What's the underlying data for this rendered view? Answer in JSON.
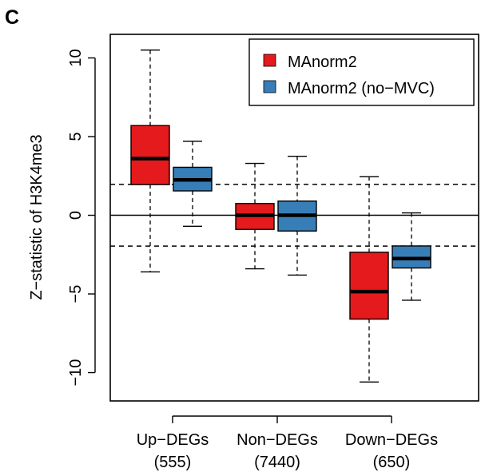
{
  "panel_label": "C",
  "chart_data": {
    "type": "box",
    "title": "",
    "xlabel": "",
    "ylabel": "Z−statistic of H3K4me3",
    "ylim": [
      -11.8,
      11.5
    ],
    "yticks": [
      10,
      5,
      0,
      -5,
      -10
    ],
    "ytick_labels": [
      "10",
      "5",
      "0",
      "−5",
      "−10"
    ],
    "categories": [
      {
        "line1": "Up−DEGs",
        "line2": "(555)"
      },
      {
        "line1": "Non−DEGs",
        "line2": "(7440)"
      },
      {
        "line1": "Down−DEGs",
        "line2": "(650)"
      }
    ],
    "series": [
      {
        "name": "MAnorm2",
        "color": "#e41a1c",
        "boxes": [
          {
            "whisker_low": -3.6,
            "q1": 1.95,
            "median": 3.6,
            "q3": 5.7,
            "whisker_high": 10.5
          },
          {
            "whisker_low": -3.4,
            "q1": -0.9,
            "median": 0.0,
            "q3": 0.75,
            "whisker_high": 3.3
          },
          {
            "whisker_low": -10.6,
            "q1": -6.6,
            "median": -4.85,
            "q3": -2.35,
            "whisker_high": 2.45
          }
        ]
      },
      {
        "name": "MAnorm2 (no−MVC)",
        "color": "#377eb8",
        "boxes": [
          {
            "whisker_low": -0.7,
            "q1": 1.55,
            "median": 2.25,
            "q3": 3.05,
            "whisker_high": 4.7
          },
          {
            "whisker_low": -3.8,
            "q1": -1.0,
            "median": 0.0,
            "q3": 0.9,
            "whisker_high": 3.75
          },
          {
            "whisker_low": -5.4,
            "q1": -3.35,
            "median": -2.75,
            "q3": -1.95,
            "whisker_high": 0.15
          }
        ]
      }
    ],
    "reference_lines": [
      {
        "y": 0,
        "style": "solid"
      },
      {
        "y": 1.96,
        "style": "dashed"
      },
      {
        "y": -1.96,
        "style": "dashed"
      }
    ],
    "legend": {
      "position": "top-right"
    },
    "grid": false
  }
}
